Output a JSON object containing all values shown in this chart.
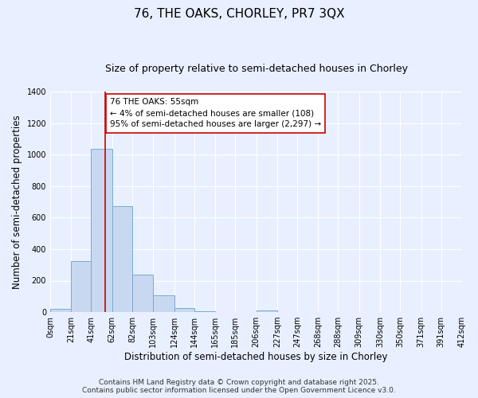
{
  "title": "76, THE OAKS, CHORLEY, PR7 3QX",
  "subtitle": "Size of property relative to semi-detached houses in Chorley",
  "xlabel": "Distribution of semi-detached houses by size in Chorley",
  "ylabel": "Number of semi-detached properties",
  "bin_edges": [
    0,
    21,
    41,
    62,
    82,
    103,
    124,
    144,
    165,
    185,
    206,
    227,
    247,
    268,
    288,
    309,
    330,
    350,
    371,
    391,
    412
  ],
  "bin_labels": [
    "0sqm",
    "21sqm",
    "41sqm",
    "62sqm",
    "82sqm",
    "103sqm",
    "124sqm",
    "144sqm",
    "165sqm",
    "185sqm",
    "206sqm",
    "227sqm",
    "247sqm",
    "268sqm",
    "288sqm",
    "309sqm",
    "330sqm",
    "350sqm",
    "371sqm",
    "391sqm",
    "412sqm"
  ],
  "bar_heights": [
    20,
    325,
    1035,
    670,
    240,
    105,
    28,
    5,
    0,
    0,
    10,
    0,
    0,
    0,
    0,
    0,
    0,
    0,
    0,
    0
  ],
  "bar_color": "#c8d8f0",
  "bar_edgecolor": "#7aaad0",
  "ylim": [
    0,
    1400
  ],
  "yticks": [
    0,
    200,
    400,
    600,
    800,
    1000,
    1200,
    1400
  ],
  "property_line_x": 55,
  "property_line_color": "#cc0000",
  "annotation_title": "76 THE OAKS: 55sqm",
  "annotation_line1": "← 4% of semi-detached houses are smaller (108)",
  "annotation_line2": "95% of semi-detached houses are larger (2,297) →",
  "annotation_box_color": "#ffffff",
  "annotation_box_edgecolor": "#cc0000",
  "background_color": "#e8f0ff",
  "grid_color": "#ffffff",
  "footer_line1": "Contains HM Land Registry data © Crown copyright and database right 2025.",
  "footer_line2": "Contains public sector information licensed under the Open Government Licence v3.0.",
  "title_fontsize": 11,
  "subtitle_fontsize": 9,
  "axis_label_fontsize": 8.5,
  "tick_fontsize": 7,
  "annotation_fontsize": 7.5,
  "footer_fontsize": 6.5
}
